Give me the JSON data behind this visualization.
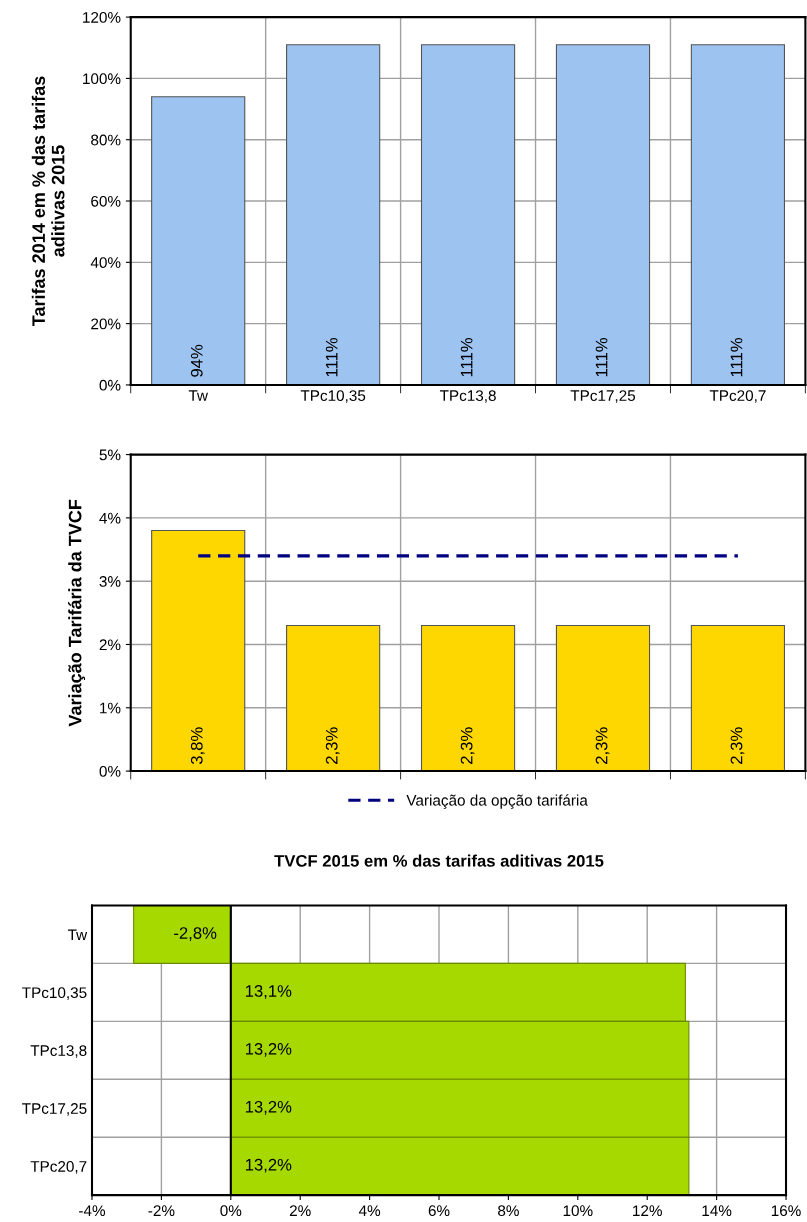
{
  "chart_data": [
    {
      "type": "bar",
      "ylabel": "Tarifas 2014 em % das tarifas\naditivas 2015",
      "categories": [
        "Tw",
        "TPc10,35",
        "TPc13,8",
        "TPc17,25",
        "TPc20,7"
      ],
      "series": [
        {
          "color": "#9dc3f0",
          "values": [
            94,
            111,
            111,
            111,
            111
          ],
          "value_labels": [
            "94%",
            "111%",
            "111%",
            "111%",
            "111%"
          ]
        }
      ],
      "ylim": [
        0,
        120
      ],
      "yticks": [
        {
          "value": 0,
          "label": "0%"
        },
        {
          "value": 20,
          "label": "20%"
        },
        {
          "value": 40,
          "label": "40%"
        },
        {
          "value": 60,
          "label": "60%"
        },
        {
          "value": 80,
          "label": "80%"
        },
        {
          "value": 100,
          "label": "100%"
        },
        {
          "value": 120,
          "label": "120%"
        }
      ],
      "grid": true,
      "legend": false
    },
    {
      "type": "bar",
      "ylabel": "Variação Tarifária da TVCF",
      "categories": [
        null,
        null,
        null,
        null,
        null
      ],
      "series": [
        {
          "color": "#ffd700",
          "values": [
            3.8,
            2.3,
            2.3,
            2.3,
            2.3
          ],
          "value_labels": [
            "3,8%",
            "2,3%",
            "2,3%",
            "2,3%",
            "2,3%"
          ]
        },
        {
          "type": "line",
          "name": "Variação da opção tarifária",
          "color": "#000080",
          "line_style": "dashed",
          "values": [
            3.4,
            3.4,
            3.4,
            3.4,
            3.4
          ]
        }
      ],
      "ylim": [
        0,
        5
      ],
      "yticks": [
        {
          "value": 0,
          "label": "0%"
        },
        {
          "value": 1,
          "label": "1%"
        },
        {
          "value": 2,
          "label": "2%"
        },
        {
          "value": 3,
          "label": "3%"
        },
        {
          "value": 4,
          "label": "4%"
        },
        {
          "value": 5,
          "label": "5%"
        }
      ],
      "grid": true,
      "legend": "bottom",
      "tick_labels": "y"
    },
    {
      "type": "bar",
      "orientation": "horizontal",
      "title": "TVCF 2015 em % das tarifas aditivas 2015",
      "categories": [
        "Tw",
        "TPc10,35",
        "TPc13,8",
        "TPc17,25",
        "TPc20,7"
      ],
      "series": [
        {
          "color": "#a6d900",
          "values": [
            -2.8,
            13.1,
            13.2,
            13.2,
            13.2
          ],
          "value_labels": [
            "-2,8%",
            "13,1%",
            "13,2%",
            "13,2%",
            "13,2%"
          ]
        }
      ],
      "xlim": [
        -4,
        16
      ],
      "xticks": [
        {
          "value": -4,
          "label": "-4%"
        },
        {
          "value": -2,
          "label": "-2%"
        },
        {
          "value": 0,
          "label": "0%"
        },
        {
          "value": 2,
          "label": "2%"
        },
        {
          "value": 4,
          "label": "4%"
        },
        {
          "value": 6,
          "label": "6%"
        },
        {
          "value": 8,
          "label": "8%"
        },
        {
          "value": 10,
          "label": "10%"
        },
        {
          "value": 12,
          "label": "12%"
        },
        {
          "value": 14,
          "label": "14%"
        },
        {
          "value": 16,
          "label": "16%"
        }
      ],
      "grid": true,
      "legend": false
    }
  ]
}
